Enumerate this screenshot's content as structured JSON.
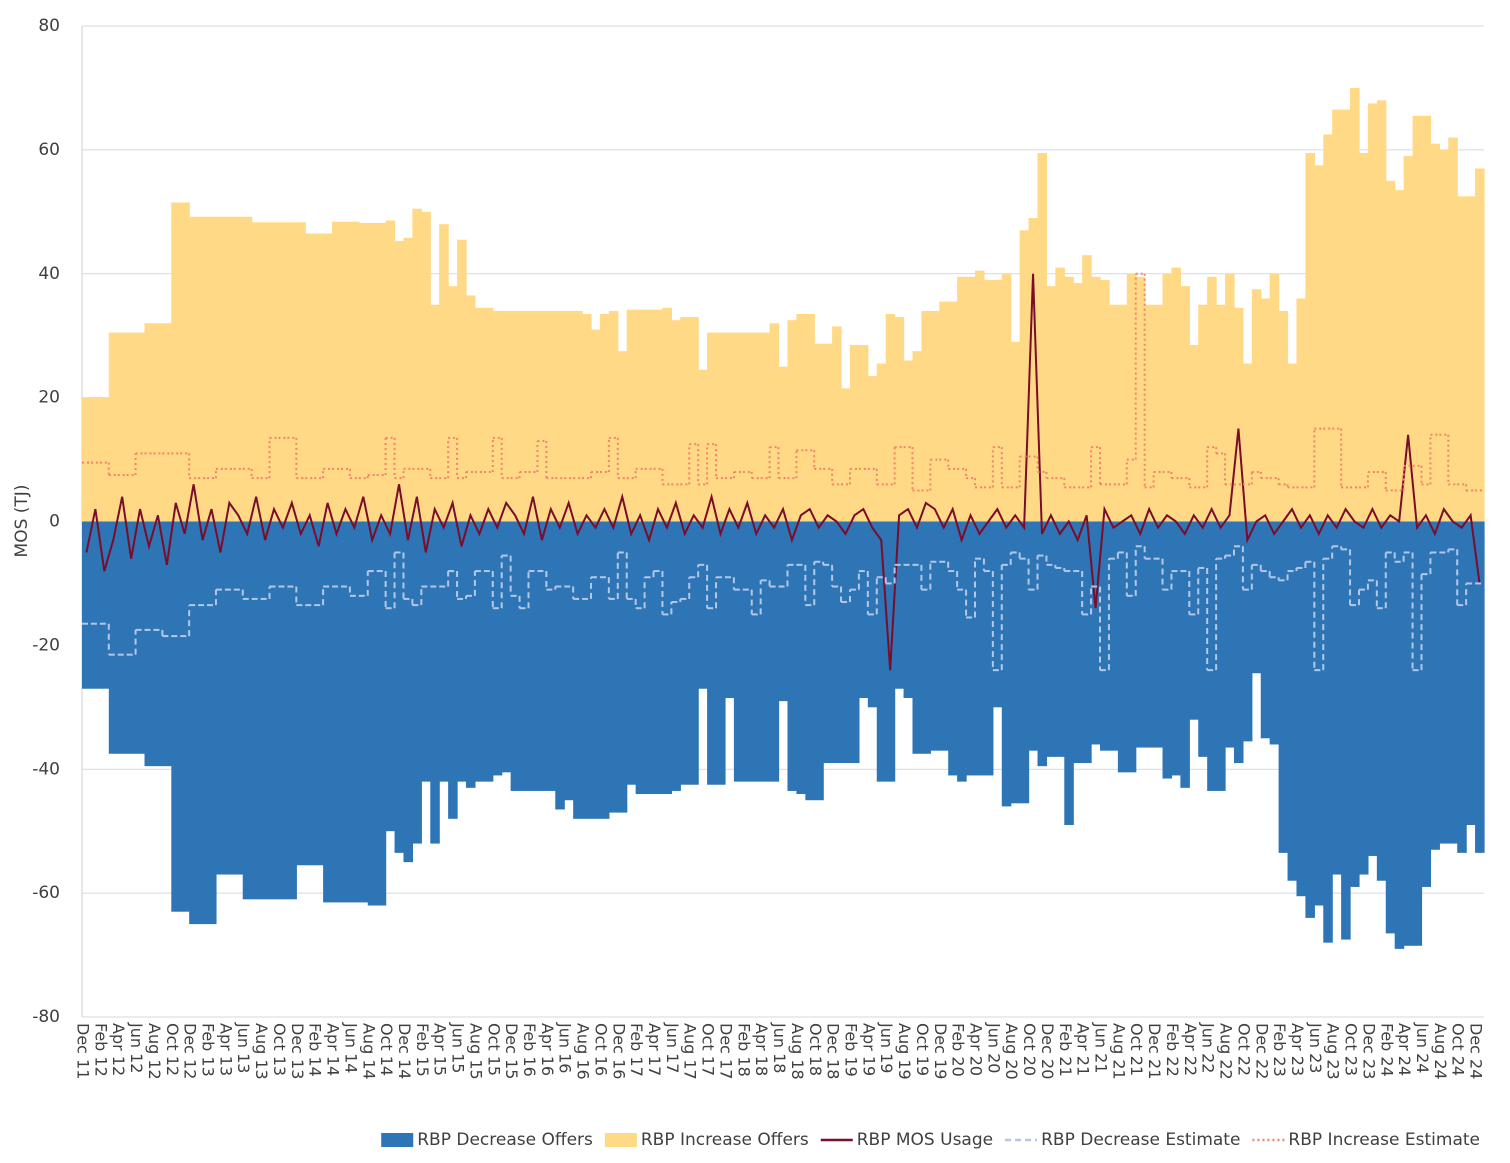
{
  "chart_data": {
    "type": "area-line",
    "y_label": "MOS (TJ)",
    "ylim": [
      -80,
      80
    ],
    "yticks": [
      -80,
      -60,
      -40,
      -20,
      0,
      20,
      40,
      60,
      80
    ],
    "grid": true,
    "legend": "bottom-right",
    "categories": [
      "Dec 11",
      null,
      "Feb 12",
      null,
      "Apr 12",
      null,
      "Jun 12",
      null,
      "Aug 12",
      null,
      "Oct 12",
      null,
      "Dec 12",
      null,
      "Feb 13",
      null,
      "Apr 13",
      null,
      "Jun 13",
      null,
      "Aug 13",
      null,
      "Oct 13",
      null,
      "Dec 13",
      null,
      "Feb 14",
      null,
      "Apr 14",
      null,
      "Jun 14",
      null,
      "Aug 14",
      null,
      "Oct 14",
      null,
      "Dec 14",
      null,
      "Feb 15",
      null,
      "Apr 15",
      null,
      "Jun 15",
      null,
      "Aug 15",
      null,
      "Oct 15",
      null,
      "Dec 15",
      null,
      "Feb 16",
      null,
      "Apr 16",
      null,
      "Jun 16",
      null,
      "Aug 16",
      null,
      "Oct 16",
      null,
      "Dec 16",
      null,
      "Feb 17",
      null,
      "Apr 17",
      null,
      "Jun 17",
      null,
      "Aug 17",
      null,
      "Oct 17",
      null,
      "Dec 17",
      null,
      "Feb 18",
      null,
      "Apr 18",
      null,
      "Jun 18",
      null,
      "Aug 18",
      null,
      "Oct 18",
      null,
      "Dec 18",
      null,
      "Feb 19",
      null,
      "Apr 19",
      null,
      "Jun 19",
      null,
      "Aug 19",
      null,
      "Oct 19",
      null,
      "Dec 19",
      null,
      "Feb 20",
      null,
      "Apr 20",
      null,
      "Jun 20",
      null,
      "Aug 20",
      null,
      "Oct 20",
      null,
      "Dec 20",
      null,
      "Feb 21",
      null,
      "Apr 21",
      null,
      "Jun 21",
      null,
      "Aug 21",
      null,
      "Oct 21",
      null,
      "Dec 21",
      null,
      "Feb 22",
      null,
      "Apr 22",
      null,
      "Jun 22",
      null,
      "Aug 22",
      null,
      "Oct 22",
      null,
      "Dec 22",
      null,
      "Feb 23",
      null,
      "Apr 23",
      null,
      "Jun 23",
      null,
      "Aug 23",
      null,
      "Oct 23",
      null,
      "Dec 23",
      null,
      "Feb 24",
      null,
      "Apr 24",
      null,
      "Jun 24",
      null,
      "Aug 24",
      null,
      "Oct 24",
      null,
      "Dec 24"
    ],
    "series": [
      {
        "name": "RBP Decrease Offers",
        "kind": "area",
        "color": "#2e75b6",
        "values": [
          -27,
          -27,
          -27,
          -37.5,
          -37.5,
          -37.5,
          -37.5,
          -39.5,
          -39.5,
          -39.5,
          -63,
          -63,
          -65,
          -65,
          -65,
          -57,
          -57,
          -57,
          -61,
          -61,
          -61,
          -61,
          -61,
          -61,
          -55.5,
          -55.5,
          -55.5,
          -61.5,
          -61.5,
          -61.5,
          -61.5,
          -61.5,
          -62,
          -62,
          -50,
          -53.5,
          -55,
          -52,
          -42,
          -52,
          -42,
          -48,
          -42,
          -43,
          -42,
          -42,
          -41,
          -40.5,
          -43.5,
          -43.5,
          -43.5,
          -43.5,
          -43.5,
          -46.5,
          -45,
          -48,
          -48,
          -48,
          -48,
          -47,
          -47,
          -42.5,
          -44,
          -44,
          -44,
          -44,
          -43.5,
          -42.5,
          -42.5,
          -27,
          -42.5,
          -42.5,
          -28.5,
          -42,
          -42,
          -42,
          -42,
          -42,
          -29,
          -43.5,
          -44,
          -45,
          -45,
          -39,
          -39,
          -39,
          -39,
          -28.5,
          -30,
          -42,
          -42,
          -27,
          -28.5,
          -37.5,
          -37.5,
          -37,
          -37,
          -41,
          -42,
          -41,
          -41,
          -41,
          -30,
          -46,
          -45.5,
          -45.5,
          -37,
          -39.5,
          -38,
          -38,
          -49,
          -39,
          -39,
          -36,
          -37,
          -37,
          -40.5,
          -40.5,
          -36.5,
          -36.5,
          -36.5,
          -41.5,
          -41,
          -43,
          -32,
          -38,
          -43.5,
          -43.5,
          -36.5,
          -39,
          -35.5,
          -24.5,
          -35,
          -36,
          -53.5,
          -58,
          -60.5,
          -64,
          -62,
          -68,
          -57,
          -67.5,
          -59,
          -57,
          -54,
          -58,
          -66.5,
          -69,
          -68.5,
          -68.5,
          -59,
          -53,
          -52,
          -52,
          -53.5,
          -49,
          -53.5
        ]
      },
      {
        "name": "RBP Increase Offers",
        "kind": "area",
        "color": "#ffd985",
        "values": [
          20,
          20,
          20,
          30.5,
          30.5,
          30.5,
          30.5,
          32,
          32,
          32,
          51.5,
          51.5,
          49.2,
          49.2,
          49.2,
          49.2,
          49.2,
          49.2,
          49.2,
          48.3,
          48.3,
          48.3,
          48.3,
          48.3,
          48.3,
          46.5,
          46.5,
          46.5,
          48.4,
          48.4,
          48.4,
          48.2,
          48.2,
          48.2,
          48.6,
          45.3,
          45.8,
          50.5,
          50,
          35,
          48,
          38,
          45.5,
          36.5,
          34.5,
          34.5,
          34,
          34,
          34,
          34,
          34,
          34,
          34,
          34,
          34,
          34,
          33.5,
          31,
          33.5,
          34,
          27.5,
          34.2,
          34.2,
          34.2,
          34.2,
          34.5,
          32.5,
          33,
          33,
          24.5,
          30.5,
          30.5,
          30.5,
          30.5,
          30.5,
          30.5,
          30.5,
          32,
          25,
          32.5,
          33.5,
          33.5,
          28.7,
          28.7,
          31.5,
          21.5,
          28.5,
          28.5,
          23.5,
          25.5,
          33.5,
          33,
          26,
          27.5,
          34,
          34,
          35.5,
          35.5,
          39.5,
          39.5,
          40.5,
          39,
          39,
          40,
          29,
          47,
          49,
          59.5,
          38,
          41,
          39.5,
          38.5,
          43,
          39.5,
          39,
          35,
          35,
          40,
          39.5,
          35,
          35,
          40,
          41,
          38,
          28.5,
          35,
          39.5,
          35,
          40,
          34.5,
          25.5,
          37.5,
          36,
          40,
          34,
          25.5,
          36,
          59.5,
          57.5,
          62.5,
          66.5,
          66.5,
          70,
          59.5,
          67.5,
          68,
          55,
          53.5,
          59,
          65.5,
          65.5,
          61,
          60,
          62,
          52.5,
          52.5,
          57
        ]
      },
      {
        "name": "RBP MOS Usage",
        "kind": "line",
        "color": "#7b0c2a",
        "dash": "solid",
        "values": [
          -5,
          2,
          -8,
          -3,
          4,
          -6,
          2,
          -4,
          1,
          -7,
          3,
          -2,
          6,
          -3,
          2,
          -5,
          3,
          1,
          -2,
          4,
          -3,
          2,
          -1,
          3,
          -2,
          1,
          -4,
          3,
          -2,
          2,
          -1,
          4,
          -3,
          1,
          -2,
          6,
          -3,
          4,
          -5,
          2,
          -1,
          3,
          -4,
          1,
          -2,
          2,
          -1,
          3,
          1,
          -2,
          4,
          -3,
          2,
          -1,
          3,
          -2,
          1,
          -1,
          2,
          -1,
          4,
          -2,
          1,
          -3,
          2,
          -1,
          3,
          -2,
          1,
          -1,
          4,
          -2,
          2,
          -1,
          3,
          -2,
          1,
          -1,
          2,
          -3,
          1,
          2,
          -1,
          1,
          0,
          -2,
          1,
          2,
          -1,
          -3,
          -24,
          1,
          2,
          -1,
          3,
          2,
          -1,
          2,
          -3,
          1,
          -2,
          0,
          2,
          -1,
          1,
          -1,
          40,
          -2,
          1,
          -2,
          0,
          -3,
          1,
          -14,
          2,
          -1,
          0,
          1,
          -2,
          2,
          -1,
          1,
          0,
          -2,
          1,
          -1,
          2,
          -1,
          1,
          15,
          -3,
          0,
          1,
          -2,
          0,
          2,
          -1,
          1,
          -2,
          1,
          -1,
          2,
          0,
          -1,
          2,
          -1,
          1,
          0,
          14,
          -1,
          1,
          -2,
          2,
          0,
          -1,
          1,
          -10
        ]
      },
      {
        "name": "RBP Decrease Estimate",
        "kind": "step",
        "color": "#b4c7e7",
        "dash": "dashed",
        "values": [
          -16.5,
          -16.5,
          -16.5,
          -21.5,
          -21.5,
          -21.5,
          -17.5,
          -17.5,
          -17.5,
          -18.5,
          -18.5,
          -18.5,
          -13.5,
          -13.5,
          -13.5,
          -11,
          -11,
          -11,
          -12.5,
          -12.5,
          -12.5,
          -10.5,
          -10.5,
          -10.5,
          -13.5,
          -13.5,
          -13.5,
          -10.5,
          -10.5,
          -10.5,
          -12,
          -12,
          -8,
          -8,
          -14,
          -5,
          -12.5,
          -13.5,
          -10.5,
          -10.5,
          -10.5,
          -8,
          -12.5,
          -12,
          -8,
          -8,
          -14,
          -5.5,
          -12,
          -14,
          -8,
          -8,
          -11,
          -10.5,
          -10.5,
          -12.5,
          -12.5,
          -9,
          -9,
          -12.5,
          -5,
          -12.5,
          -14,
          -9,
          -8,
          -15,
          -13,
          -12.5,
          -9,
          -7,
          -14,
          -9,
          -9,
          -11,
          -11,
          -15,
          -9.5,
          -10.5,
          -10.5,
          -7,
          -7,
          -13.5,
          -6.5,
          -7,
          -10.5,
          -13,
          -11,
          -8,
          -15,
          -9,
          -10,
          -7,
          -7,
          -7,
          -11,
          -6.5,
          -6.5,
          -8,
          -11,
          -15.5,
          -6,
          -8,
          -24,
          -7,
          -5,
          -6,
          -11,
          -5.5,
          -7,
          -7.5,
          -8,
          -8,
          -15,
          -10.5,
          -24,
          -6,
          -5,
          -12,
          -4,
          -6,
          -6,
          -11,
          -8,
          -8,
          -15,
          -7.5,
          -24,
          -6,
          -5.5,
          -4,
          -11,
          -7,
          -8,
          -9,
          -9.5,
          -8,
          -7.5,
          -6.5,
          -24,
          -6,
          -4,
          -4.5,
          -13.5,
          -11,
          -9.5,
          -14,
          -5,
          -6.5,
          -5,
          -24,
          -8.5,
          -5,
          -5,
          -4.5,
          -13.5,
          -10,
          -10
        ]
      },
      {
        "name": "RBP Increase Estimate",
        "kind": "step",
        "color": "#f4836b",
        "dash": "dotted",
        "values": [
          9.5,
          9.5,
          9.5,
          7.5,
          7.5,
          7.5,
          11,
          11,
          11,
          11,
          11,
          11,
          7,
          7,
          7,
          8.5,
          8.5,
          8.5,
          8.5,
          7,
          7,
          13.5,
          13.5,
          13.5,
          7,
          7,
          7,
          8.5,
          8.5,
          8.5,
          7,
          7,
          7.5,
          7.5,
          13.5,
          7,
          8.5,
          8.5,
          8.5,
          7,
          7,
          13.5,
          7,
          8,
          8,
          8,
          13.5,
          7,
          7,
          8,
          8,
          13,
          7,
          7,
          7,
          7,
          7,
          8,
          8,
          13.5,
          7,
          7,
          8.5,
          8.5,
          8.5,
          6,
          6,
          6,
          12.5,
          6,
          12.5,
          7,
          7,
          8,
          8,
          7,
          7,
          12,
          7,
          7,
          11.5,
          11.5,
          8.5,
          8.5,
          6,
          6,
          8.5,
          8.5,
          8.5,
          6,
          6,
          12,
          12,
          5,
          5,
          10,
          10,
          8.5,
          8.5,
          7,
          5.5,
          5.5,
          12,
          5.5,
          5.5,
          10.5,
          10.5,
          8,
          7,
          7,
          5.5,
          5.5,
          5.5,
          12,
          6,
          6,
          6,
          10,
          40,
          5.5,
          8,
          8,
          7,
          7,
          5.5,
          5.5,
          12,
          11,
          6,
          6,
          6,
          8,
          7,
          7,
          6,
          5.5,
          5.5,
          5.5,
          15,
          15,
          15,
          5.5,
          5.5,
          5.5,
          8,
          8,
          5,
          5,
          9,
          9,
          6,
          14,
          14,
          6,
          6,
          5,
          5
        ]
      }
    ]
  }
}
